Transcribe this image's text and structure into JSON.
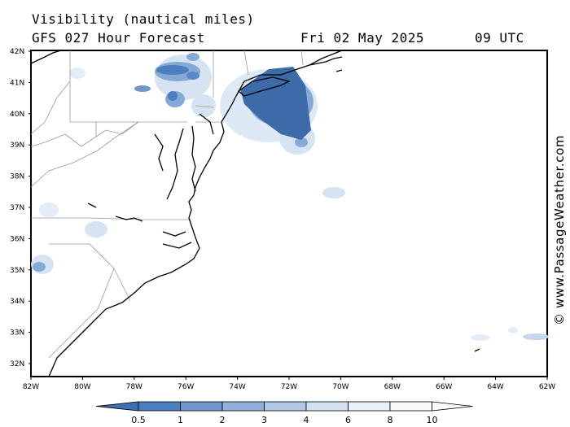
{
  "header": {
    "title": "Visibility (nautical miles)",
    "model": "GFS 027 Hour Forecast",
    "date": "Fri 02 May 2025",
    "hour": "09 UTC"
  },
  "copyright": "© www.PassageWeather.com",
  "map": {
    "lon_range": [
      -82,
      -62
    ],
    "lat_range": [
      31.5,
      42
    ],
    "lat_ticks": [
      "42N",
      "41N",
      "40N",
      "39N",
      "38N",
      "37N",
      "36N",
      "35N",
      "34N",
      "33N",
      "32N"
    ],
    "lon_ticks": [
      "82W",
      "80W",
      "78W",
      "76W",
      "74W",
      "72W",
      "70W",
      "68W",
      "66W",
      "64W",
      "62W"
    ]
  },
  "legend": {
    "labels": [
      "0.5",
      "1",
      "2",
      "3",
      "4",
      "6",
      "8",
      "10"
    ],
    "colors": [
      "#3f6fb0",
      "#4b7fc0",
      "#6f97cc",
      "#8eb0da",
      "#b0c9e6",
      "#d2e1f1",
      "#e9f0f8",
      "#f8fafc"
    ]
  },
  "colors": {
    "fog_dense": "#3d6aa8",
    "fog_mid": "#86a9d6",
    "fog_light": "#d5e3f2",
    "border": "#000000",
    "state_lines": "#9a9a9a"
  }
}
